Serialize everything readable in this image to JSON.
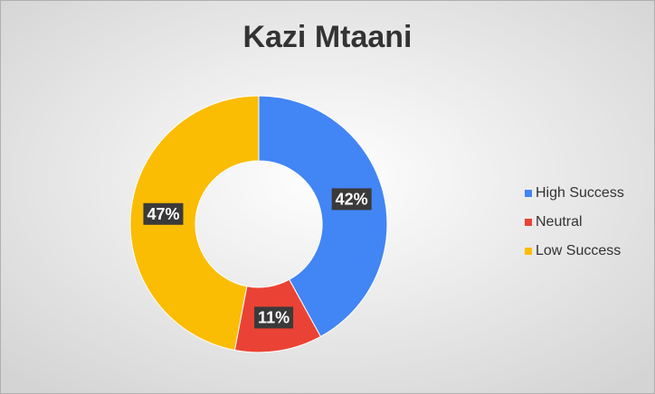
{
  "chart_data": {
    "type": "donut",
    "title": "Kazi Mtaani",
    "categories": [
      "High Success",
      "Neutral",
      "Low Success"
    ],
    "values": [
      42,
      11,
      47
    ],
    "value_labels": [
      "42%",
      "11%",
      "47%"
    ],
    "colors": [
      "#4285f4",
      "#ea4335",
      "#fbbc04"
    ],
    "legend": "right"
  }
}
